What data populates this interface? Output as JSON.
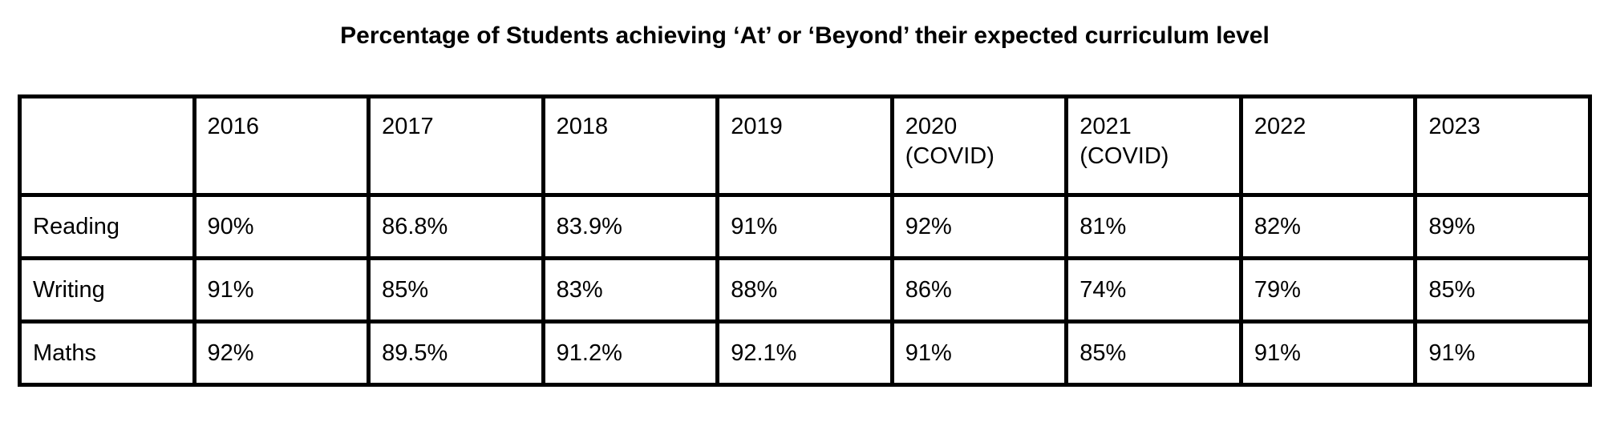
{
  "title": "Percentage of Students achieving ‘At’ or ‘Beyond’ their expected curriculum level",
  "chart_data": {
    "type": "table",
    "title": "Percentage of Students achieving ‘At’ or ‘Beyond’ their expected curriculum level",
    "columns": [
      "",
      "2016",
      "2017",
      "2018",
      "2019",
      "2020\n(COVID)",
      "2021\n(COVID)",
      "2022",
      "2023"
    ],
    "rows": [
      {
        "label": "Reading",
        "values": [
          "90%",
          "86.8%",
          "83.9%",
          "91%",
          "92%",
          "81%",
          "82%",
          "89%"
        ]
      },
      {
        "label": "Writing",
        "values": [
          "91%",
          "85%",
          "83%",
          "88%",
          "86%",
          "74%",
          "79%",
          "85%"
        ]
      },
      {
        "label": "Maths",
        "values": [
          "92%",
          "89.5%",
          "91.2%",
          "92.1%",
          "91%",
          "85%",
          "91%",
          "91%"
        ]
      }
    ],
    "notes": {
      "units": "percent of students",
      "legend_position": "none",
      "grid": "full table borders"
    }
  }
}
